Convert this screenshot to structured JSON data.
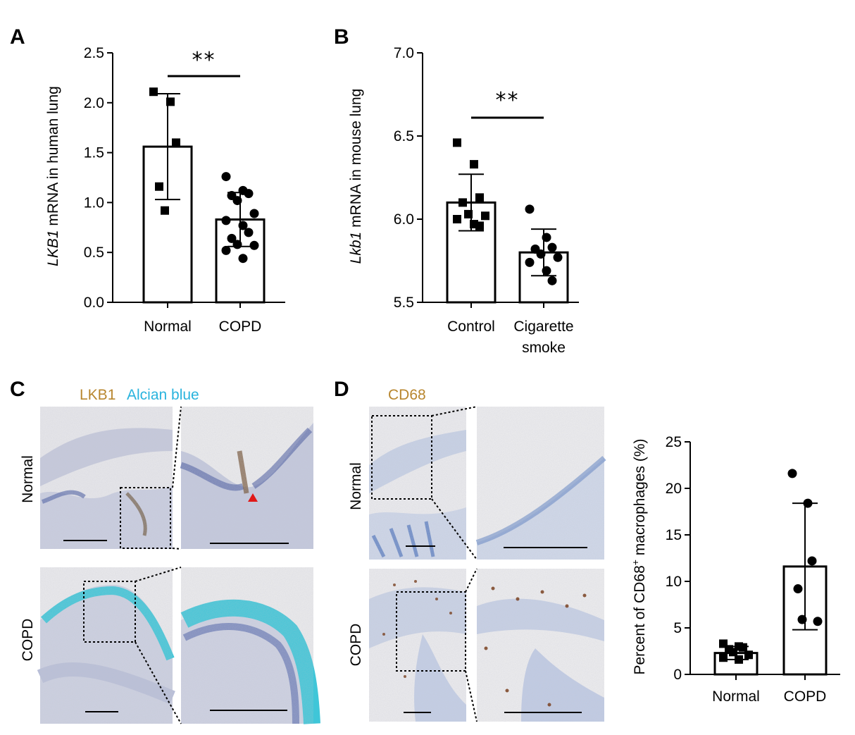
{
  "panels": {
    "A": "A",
    "B": "B",
    "C": "C",
    "D": "D"
  },
  "colors": {
    "lkb1_label": "#b8862e",
    "alcian_label": "#29b3dd",
    "cd68_label": "#b8862e",
    "arrowhead": "#e01818",
    "tissue_bg": "#e9e9ec",
    "nuclei": "#4a5ea8",
    "alcian": "#3fc6d8",
    "dab": "#7a4222"
  },
  "micrographs": {
    "C_stains": [
      "LKB1",
      "Alcian blue"
    ],
    "D_stain": "CD68",
    "rows": [
      "Normal",
      "COPD"
    ]
  },
  "chart_data": [
    {
      "id": "A",
      "type": "bar",
      "categories": [
        "Normal",
        "COPD"
      ],
      "ylabel_italic": "LKB1",
      "ylabel_rest": " mRNA in human lung",
      "ylim": [
        0,
        2.5
      ],
      "yticks": [
        0.0,
        0.5,
        1.0,
        1.5,
        2.0,
        2.5
      ],
      "ytick_labels": [
        "0.0",
        "0.5",
        "1.0",
        "1.5",
        "2.0",
        "2.5"
      ],
      "bars": [
        1.56,
        0.83
      ],
      "sd": [
        0.53,
        0.27
      ],
      "points": [
        {
          "category": "Normal",
          "marker": "square",
          "values": [
            2.11,
            2.01,
            1.6,
            1.16,
            0.92
          ]
        },
        {
          "category": "COPD",
          "marker": "circle",
          "values": [
            1.26,
            1.12,
            1.09,
            1.07,
            1.02,
            0.89,
            0.82,
            0.77,
            0.7,
            0.64,
            0.58,
            0.57,
            0.52,
            0.44
          ]
        }
      ],
      "significance": "**",
      "grid": false
    },
    {
      "id": "B",
      "type": "bar",
      "categories": [
        "Control",
        "Cigarette smoke"
      ],
      "category_lines": [
        [
          "Control"
        ],
        [
          "Cigarette",
          "smoke"
        ]
      ],
      "ylabel_italic": "Lkb1",
      "ylabel_rest": " mRNA in mouse lung",
      "ylim": [
        5.5,
        7.0
      ],
      "yticks": [
        5.5,
        6.0,
        6.5,
        7.0
      ],
      "ytick_labels": [
        "5.5",
        "6.0",
        "6.5",
        "7.0"
      ],
      "bars": [
        6.1,
        5.8
      ],
      "sd": [
        0.17,
        0.14
      ],
      "points": [
        {
          "category": "Control",
          "marker": "square",
          "values": [
            6.46,
            6.33,
            6.13,
            6.1,
            6.03,
            6.02,
            6.0,
            5.97,
            5.96
          ]
        },
        {
          "category": "Cigarette smoke",
          "marker": "circle",
          "values": [
            6.06,
            5.89,
            5.83,
            5.82,
            5.79,
            5.77,
            5.74,
            5.69,
            5.63
          ]
        }
      ],
      "significance": "**",
      "grid": false
    },
    {
      "id": "D",
      "type": "bar",
      "categories": [
        "Normal",
        "COPD"
      ],
      "ylabel_pre": "Percent of CD68",
      "ylabel_sup": "+",
      "ylabel_post": " macrophages (%)",
      "ylim": [
        0,
        25
      ],
      "yticks": [
        0,
        5,
        10,
        15,
        20,
        25
      ],
      "ytick_labels": [
        "0",
        "5",
        "10",
        "15",
        "20",
        "25"
      ],
      "bars": [
        2.3,
        11.6
      ],
      "sd": [
        0.7,
        6.8
      ],
      "points": [
        {
          "category": "Normal",
          "marker": "square",
          "values": [
            3.3,
            3.0,
            2.9,
            2.7,
            2.4,
            2.1,
            1.8,
            1.6
          ]
        },
        {
          "category": "COPD",
          "marker": "circle",
          "values": [
            21.6,
            18.4,
            12.2,
            9.2,
            5.9,
            5.7
          ]
        }
      ],
      "significance": "",
      "grid": false
    }
  ]
}
